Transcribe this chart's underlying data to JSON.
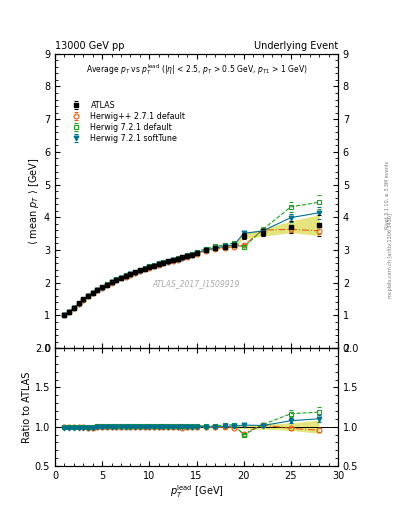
{
  "title_left": "13000 GeV pp",
  "title_right": "Underlying Event",
  "watermark": "ATLAS_2017_I1509919",
  "ylim_main": [
    0,
    9
  ],
  "ylim_ratio": [
    0.5,
    2.0
  ],
  "xmin": 0,
  "xmax": 30,
  "atlas_x": [
    1.0,
    1.5,
    2.0,
    2.5,
    3.0,
    3.5,
    4.0,
    4.5,
    5.0,
    5.5,
    6.0,
    6.5,
    7.0,
    7.5,
    8.0,
    8.5,
    9.0,
    9.5,
    10.0,
    10.5,
    11.0,
    11.5,
    12.0,
    12.5,
    13.0,
    13.5,
    14.0,
    14.5,
    15.0,
    16.0,
    17.0,
    18.0,
    19.0,
    20.0,
    22.0,
    25.0,
    28.0
  ],
  "atlas_y": [
    1.02,
    1.12,
    1.24,
    1.37,
    1.49,
    1.6,
    1.7,
    1.78,
    1.86,
    1.94,
    2.01,
    2.08,
    2.14,
    2.2,
    2.26,
    2.32,
    2.38,
    2.43,
    2.48,
    2.52,
    2.57,
    2.61,
    2.65,
    2.69,
    2.73,
    2.78,
    2.82,
    2.86,
    2.9,
    3.01,
    3.07,
    3.1,
    3.14,
    3.44,
    3.53,
    3.71,
    3.76
  ],
  "atlas_yerr": [
    0.03,
    0.03,
    0.03,
    0.03,
    0.03,
    0.03,
    0.03,
    0.03,
    0.03,
    0.03,
    0.03,
    0.03,
    0.03,
    0.03,
    0.03,
    0.03,
    0.03,
    0.03,
    0.03,
    0.03,
    0.03,
    0.03,
    0.03,
    0.03,
    0.03,
    0.03,
    0.03,
    0.03,
    0.03,
    0.04,
    0.04,
    0.04,
    0.05,
    0.09,
    0.11,
    0.18,
    0.32
  ],
  "hw271_x": [
    1.0,
    1.5,
    2.0,
    2.5,
    3.0,
    3.5,
    4.0,
    4.5,
    5.0,
    5.5,
    6.0,
    6.5,
    7.0,
    7.5,
    8.0,
    8.5,
    9.0,
    9.5,
    10.0,
    10.5,
    11.0,
    11.5,
    12.0,
    12.5,
    13.0,
    13.5,
    14.0,
    14.5,
    15.0,
    16.0,
    17.0,
    18.0,
    19.0,
    20.0,
    22.0,
    25.0,
    28.0
  ],
  "hw271_y": [
    1.01,
    1.11,
    1.23,
    1.36,
    1.48,
    1.58,
    1.68,
    1.77,
    1.85,
    1.93,
    2.0,
    2.07,
    2.13,
    2.19,
    2.25,
    2.3,
    2.36,
    2.41,
    2.46,
    2.5,
    2.55,
    2.59,
    2.63,
    2.67,
    2.71,
    2.75,
    2.8,
    2.84,
    2.88,
    2.98,
    3.04,
    3.07,
    3.1,
    3.14,
    3.61,
    3.63,
    3.59
  ],
  "hw271_yerr": [
    0.01,
    0.01,
    0.01,
    0.01,
    0.01,
    0.01,
    0.01,
    0.01,
    0.01,
    0.01,
    0.01,
    0.01,
    0.01,
    0.01,
    0.01,
    0.01,
    0.01,
    0.01,
    0.01,
    0.01,
    0.01,
    0.01,
    0.01,
    0.01,
    0.01,
    0.01,
    0.01,
    0.01,
    0.01,
    0.01,
    0.02,
    0.02,
    0.02,
    0.03,
    0.05,
    0.07,
    0.1
  ],
  "hw721d_x": [
    1.0,
    1.5,
    2.0,
    2.5,
    3.0,
    3.5,
    4.0,
    4.5,
    5.0,
    5.5,
    6.0,
    6.5,
    7.0,
    7.5,
    8.0,
    8.5,
    9.0,
    9.5,
    10.0,
    10.5,
    11.0,
    11.5,
    12.0,
    12.5,
    13.0,
    13.5,
    14.0,
    14.5,
    15.0,
    16.0,
    17.0,
    18.0,
    19.0,
    20.0,
    22.0,
    25.0,
    28.0
  ],
  "hw721d_y": [
    1.01,
    1.12,
    1.24,
    1.37,
    1.49,
    1.6,
    1.7,
    1.79,
    1.87,
    1.95,
    2.03,
    2.1,
    2.16,
    2.23,
    2.28,
    2.34,
    2.4,
    2.45,
    2.5,
    2.54,
    2.59,
    2.63,
    2.67,
    2.71,
    2.76,
    2.8,
    2.85,
    2.89,
    2.94,
    3.04,
    3.11,
    3.16,
    3.22,
    3.08,
    3.62,
    4.32,
    4.46
  ],
  "hw721d_yerr": [
    0.01,
    0.01,
    0.01,
    0.01,
    0.01,
    0.01,
    0.01,
    0.01,
    0.01,
    0.01,
    0.01,
    0.01,
    0.01,
    0.01,
    0.01,
    0.01,
    0.01,
    0.01,
    0.01,
    0.01,
    0.01,
    0.01,
    0.01,
    0.01,
    0.01,
    0.01,
    0.01,
    0.01,
    0.01,
    0.02,
    0.02,
    0.03,
    0.04,
    0.06,
    0.08,
    0.16,
    0.22
  ],
  "hw721s_x": [
    1.0,
    1.5,
    2.0,
    2.5,
    3.0,
    3.5,
    4.0,
    4.5,
    5.0,
    5.5,
    6.0,
    6.5,
    7.0,
    7.5,
    8.0,
    8.5,
    9.0,
    9.5,
    10.0,
    10.5,
    11.0,
    11.5,
    12.0,
    12.5,
    13.0,
    13.5,
    14.0,
    14.5,
    15.0,
    16.0,
    17.0,
    18.0,
    19.0,
    20.0,
    22.0,
    25.0,
    28.0
  ],
  "hw721s_y": [
    1.0,
    1.1,
    1.22,
    1.35,
    1.47,
    1.58,
    1.68,
    1.77,
    1.85,
    1.93,
    2.01,
    2.08,
    2.14,
    2.2,
    2.26,
    2.31,
    2.37,
    2.42,
    2.47,
    2.51,
    2.56,
    2.6,
    2.64,
    2.68,
    2.73,
    2.77,
    2.82,
    2.86,
    2.9,
    3.0,
    3.06,
    3.11,
    3.16,
    3.51,
    3.58,
    3.99,
    4.14
  ],
  "hw721s_yerr": [
    0.01,
    0.01,
    0.01,
    0.01,
    0.01,
    0.01,
    0.01,
    0.01,
    0.01,
    0.01,
    0.01,
    0.01,
    0.01,
    0.01,
    0.01,
    0.01,
    0.01,
    0.01,
    0.01,
    0.01,
    0.01,
    0.01,
    0.01,
    0.01,
    0.01,
    0.01,
    0.01,
    0.01,
    0.01,
    0.01,
    0.02,
    0.02,
    0.03,
    0.05,
    0.07,
    0.12,
    0.18
  ],
  "atlas_color": "#000000",
  "hw271_color": "#e06010",
  "hw721d_color": "#20a020",
  "hw721s_color": "#007090",
  "atlas_band_color": "#cccc00",
  "atlas_band_alpha": 0.5,
  "bg_color": "#ffffff"
}
